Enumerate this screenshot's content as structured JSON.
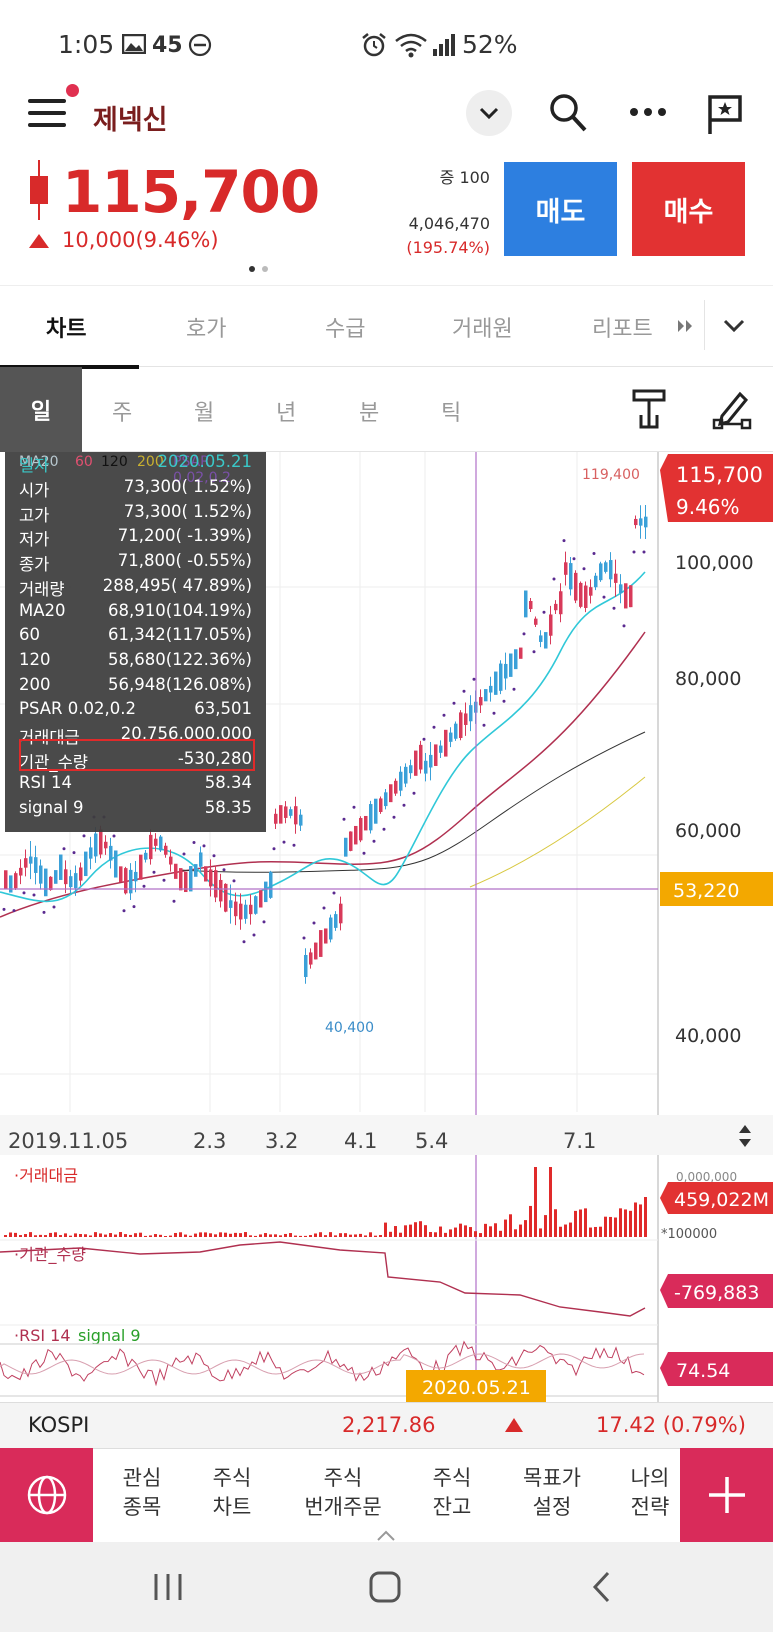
{
  "status_bar": {
    "time": "1:05",
    "notif_count": "45",
    "battery": "52%"
  },
  "header": {
    "stock_name": "제넥신"
  },
  "quote": {
    "price": "115,700",
    "change": "10,000(9.46%)",
    "unit_label": "증 100",
    "volume": "4,046,470",
    "volume_ratio": "(195.74%)",
    "sell_label": "매도",
    "buy_label": "매수"
  },
  "tabs": [
    "차트",
    "호가",
    "수급",
    "거래원",
    "리포트"
  ],
  "periods": [
    "일",
    "주",
    "월",
    "년",
    "분",
    "틱"
  ],
  "chart": {
    "legend": {
      "ma20": "MA20",
      "p60": "60",
      "p120": "120",
      "p200": "200",
      "psar": "PSAR 0.02,0.2"
    },
    "count": "181",
    "price_axis": [
      "100,000",
      "80,000",
      "60,000",
      "40,000"
    ],
    "current_price_tag": "115,700",
    "current_pct_tag": "9.46%",
    "crosshair_price_tag": "53,220",
    "high_label": "119,400",
    "low_label": "40,400",
    "date_axis": [
      "2019.11.05",
      "2.3",
      "3.2",
      "4.1",
      "5.4",
      "7.1"
    ],
    "crosshair_date": "2020.05.21",
    "sub1": {
      "title": "·거래대금",
      "value_tag": "459,022M",
      "unit": "*100000",
      "top_tick": "0,000,000"
    },
    "sub2": {
      "title": "·기관_수량",
      "value_tag": "-769,883"
    },
    "sub3": {
      "title_rsi": "·RSI 14",
      "title_signal": "signal 9",
      "value_tag": "74.54"
    }
  },
  "overlay": {
    "date_key": "일자",
    "date_val": "2020.05.21",
    "rows": [
      {
        "k": "시가",
        "v": "73,300(    1.52%)"
      },
      {
        "k": "고가",
        "v": "73,300(    1.52%)"
      },
      {
        "k": "저가",
        "v": "71,200(   -1.39%)"
      },
      {
        "k": "종가",
        "v": "71,800(   -0.55%)"
      },
      {
        "k": "거래량",
        "v": "288,495(  47.89%)"
      },
      {
        "k": "MA20",
        "v": "68,910(104.19%)"
      },
      {
        "k": "60",
        "v": "61,342(117.05%)"
      },
      {
        "k": "120",
        "v": "58,680(122.36%)"
      },
      {
        "k": "200",
        "v": "56,948(126.08%)"
      },
      {
        "k": "PSAR 0.02,0.2",
        "v": "63,501"
      },
      {
        "k": "거래대금",
        "v": "20,756,000,000"
      },
      {
        "k": "기관_수량",
        "v": "-530,280"
      },
      {
        "k": "RSI 14",
        "v": "58.34"
      },
      {
        "k": "signal 9",
        "v": "58.35"
      }
    ]
  },
  "kospi": {
    "name": "KOSPI",
    "value": "2,217.86",
    "change": "17.42 (0.79%)"
  },
  "bottom_nav": [
    {
      "l1": "관심",
      "l2": "종목"
    },
    {
      "l1": "주식",
      "l2": "차트"
    },
    {
      "l1": "주식",
      "l2": "번개주문"
    },
    {
      "l1": "주식",
      "l2": "잔고"
    },
    {
      "l1": "목표가",
      "l2": "설정"
    },
    {
      "l1": "나의",
      "l2": "전략"
    }
  ],
  "colors": {
    "up": "#d82a2a",
    "down": "#3aa0d8",
    "brand": "#d92b5a",
    "sell": "#2d7fe0",
    "tag_yellow": "#f3a800"
  }
}
